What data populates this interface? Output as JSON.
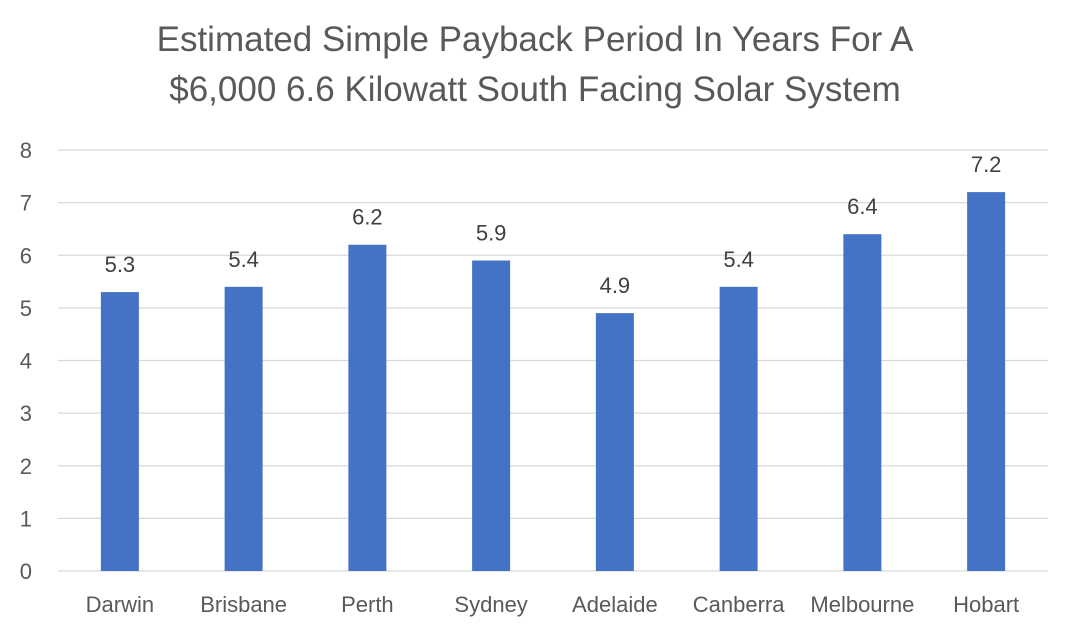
{
  "chart_data": {
    "type": "bar",
    "title_lines": [
      "Estimated Simple Payback Period In Years For A",
      "$6,000 6.6 Kilowatt South Facing Solar System"
    ],
    "categories": [
      "Darwin",
      "Brisbane",
      "Perth",
      "Sydney",
      "Adelaide",
      "Canberra",
      "Melbourne",
      "Hobart"
    ],
    "values": [
      5.3,
      5.4,
      6.2,
      5.9,
      4.9,
      5.4,
      6.4,
      7.2
    ],
    "data_labels": [
      "5.3",
      "5.4",
      "6.2",
      "5.9",
      "4.9",
      "5.4",
      "6.4",
      "7.2"
    ],
    "y_ticks": [
      "0",
      "1",
      "2",
      "3",
      "4",
      "5",
      "6",
      "7",
      "8"
    ],
    "xlabel": "",
    "ylabel": "",
    "ylim": [
      0,
      8
    ],
    "grid": true,
    "legend": "none",
    "colors": {
      "bar": "#4472c4",
      "grid": "#d9d9d9",
      "text": "#595959",
      "label": "#404040"
    }
  }
}
